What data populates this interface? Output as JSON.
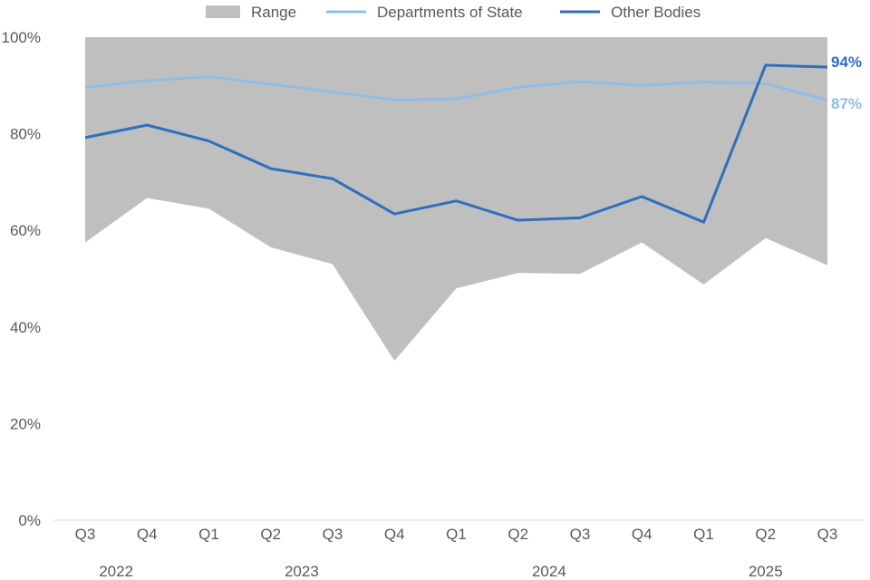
{
  "chart_data": {
    "type": "line",
    "title": "",
    "xlabel": "",
    "ylabel": "",
    "ylim": [
      0,
      100
    ],
    "yticks": [
      "0%",
      "20%",
      "40%",
      "60%",
      "80%",
      "100%"
    ],
    "ytick_values": [
      0,
      20,
      40,
      60,
      80,
      100
    ],
    "categories": [
      "Q3",
      "Q4",
      "Q1",
      "Q2",
      "Q3",
      "Q4",
      "Q1",
      "Q2",
      "Q3",
      "Q4",
      "Q1",
      "Q2",
      "Q3"
    ],
    "years": [
      {
        "label": "2022",
        "start": 0,
        "end": 1
      },
      {
        "label": "2023",
        "start": 2,
        "end": 5
      },
      {
        "label": "2024",
        "start": 6,
        "end": 9
      },
      {
        "label": "2025",
        "start": 10,
        "end": 12
      }
    ],
    "legend": {
      "position": "top",
      "items": [
        "Range",
        "Departments of State",
        "Other Bodies"
      ]
    },
    "range": {
      "name": "Range",
      "color": "#bfbfbf",
      "upper": [
        100,
        100,
        100,
        100,
        100,
        100,
        100,
        100,
        100,
        100,
        100,
        100,
        100
      ],
      "lower": [
        57.5,
        66.7,
        64.5,
        56.5,
        53,
        33,
        48,
        51.2,
        51,
        57.5,
        48.8,
        58.4,
        52.8
      ]
    },
    "series": [
      {
        "name": "Departments of State",
        "color": "#8fbde6",
        "values": [
          89.6,
          91,
          91.8,
          90.3,
          88.7,
          87,
          87.2,
          89.6,
          90.8,
          90,
          90.7,
          90.4,
          87
        ],
        "end_label": "87%"
      },
      {
        "name": "Other Bodies",
        "color": "#2e6fbd",
        "values": [
          79.2,
          81.8,
          78.5,
          72.8,
          70.7,
          63.4,
          66.1,
          62.1,
          62.6,
          67,
          61.7,
          94.2,
          93.8
        ],
        "end_label": "94%"
      }
    ]
  }
}
